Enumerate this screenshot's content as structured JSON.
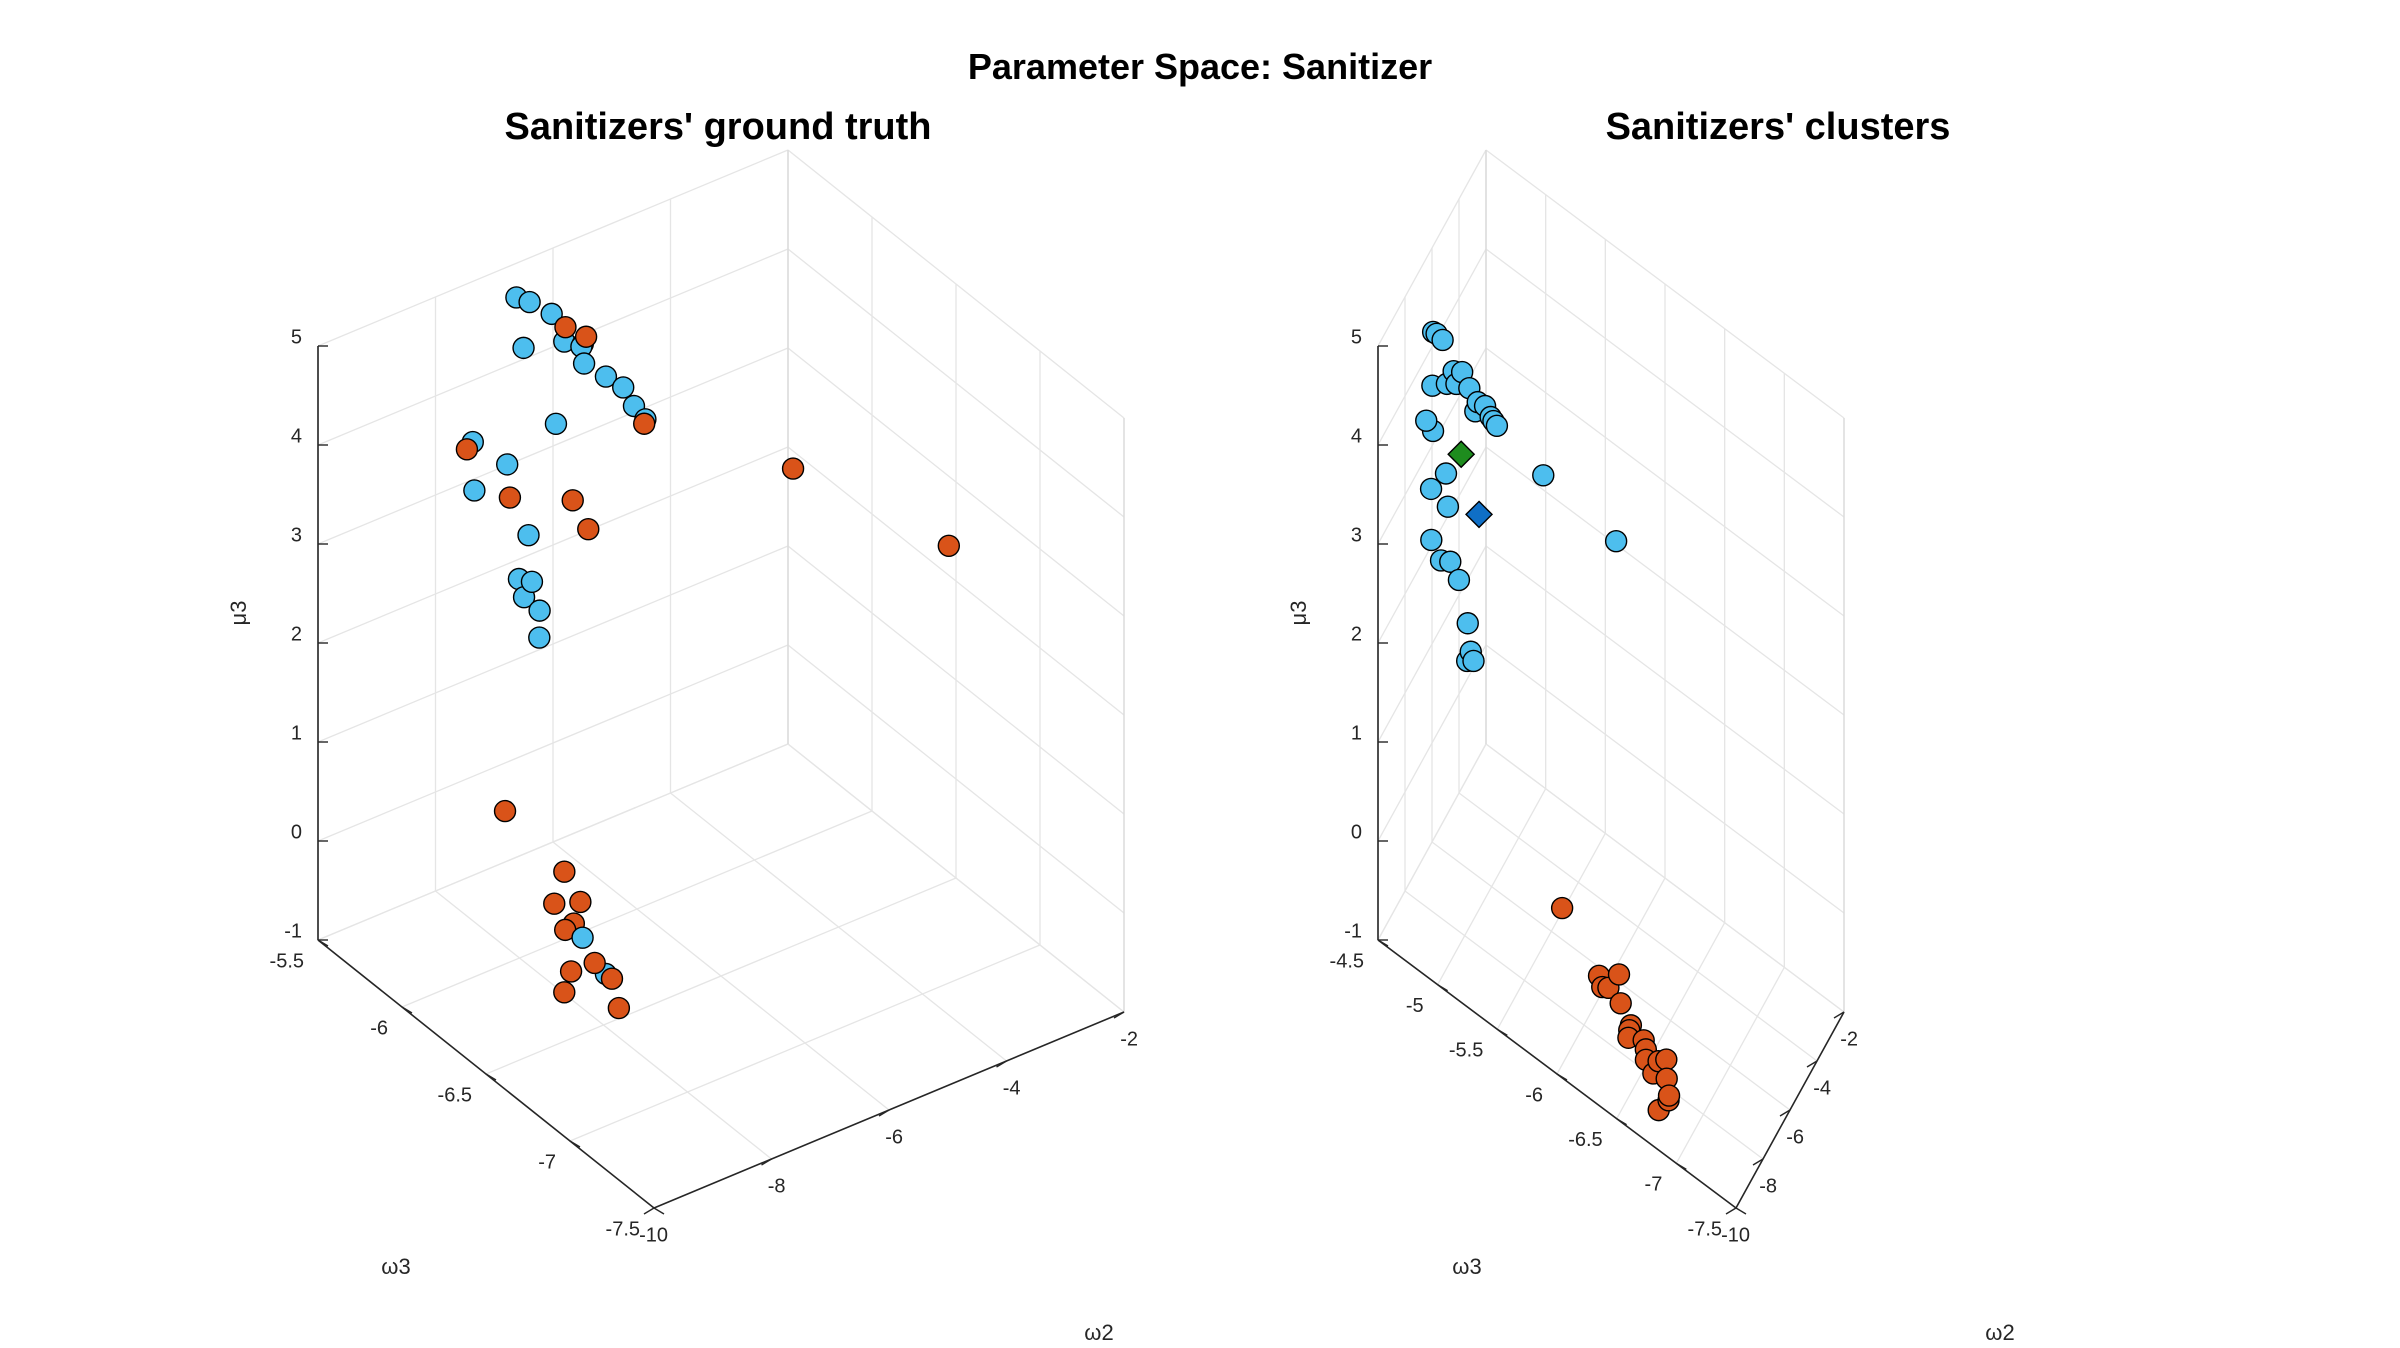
{
  "figure_title": "Parameter Space: Sanitizer",
  "colors": {
    "blue": "#4DBEEE",
    "orange": "#D95319",
    "green": "#1E8C1E",
    "darkblue": "#0F6FC6"
  },
  "chart_data": [
    {
      "type": "scatter",
      "title": "Sanitizers' ground truth",
      "xlabel": "ω2",
      "ylabel": "ω3",
      "zlabel": "μ3",
      "xlim": [
        -10,
        -2
      ],
      "ylim": [
        -7.5,
        -5.5
      ],
      "zlim": [
        -1,
        5
      ],
      "xticks": [
        "-10",
        "-8",
        "-6",
        "-4",
        "-2"
      ],
      "yticks": [
        "-7.5",
        "-7",
        "-6.5",
        "-6",
        "-5.5"
      ],
      "zticks": [
        "-1",
        "0",
        "1",
        "2",
        "3",
        "4",
        "5"
      ],
      "grid": true,
      "series": [
        {
          "color": "blue",
          "points": [
            [
              -6.88,
              -5.59,
              4.84
            ],
            [
              -6.77,
              -5.63,
              4.82
            ],
            [
              -6.48,
              -5.66,
              4.67
            ],
            [
              -6.38,
              -5.7,
              4.42
            ],
            [
              -6.26,
              -5.76,
              4.42
            ],
            [
              -6.3,
              -5.79,
              4.3
            ],
            [
              -6.1,
              -5.85,
              4.2
            ],
            [
              -5.92,
              -5.89,
              4.1
            ],
            [
              -5.88,
              -5.94,
              3.97
            ],
            [
              -5.8,
              -5.98,
              3.87
            ],
            [
              -6.73,
              -5.58,
              4.28
            ],
            [
              -7.38,
              -5.71,
              3.44
            ],
            [
              -7.71,
              -5.63,
              3.15
            ],
            [
              -6.76,
              -5.62,
              2.45
            ],
            [
              -6.35,
              -5.64,
              3.5
            ],
            [
              -7.52,
              -5.95,
              2.05
            ],
            [
              -7.0,
              -5.77,
              1.95
            ],
            [
              -6.58,
              -5.5,
              1.8
            ],
            [
              -6.75,
              -5.59,
              1.78
            ],
            [
              -7.87,
              -6.33,
              -0.38
            ],
            [
              -7.73,
              -6.42,
              -0.66
            ],
            [
              -8.36,
              -6.2,
              3.16
            ],
            [
              -7.48,
              -5.54,
              3.46
            ]
          ]
        },
        {
          "color": "orange",
          "points": [
            [
              -6.36,
              -5.7,
              4.56
            ],
            [
              -6.18,
              -5.76,
              4.5
            ],
            [
              -5.82,
              -5.98,
              3.83
            ],
            [
              -6.15,
              -5.73,
              4.38
            ],
            [
              -7.98,
              -5.68,
              3.7
            ],
            [
              -7.62,
              -5.81,
              3.3
            ],
            [
              -5.8,
              -5.64,
              2.3
            ],
            [
              -5.75,
              -5.53,
              2.43
            ],
            [
              -4.23,
              -6.31,
              3.43
            ],
            [
              -2.78,
              -6.73,
              2.86
            ],
            [
              -7.56,
              -5.76,
              0.05
            ],
            [
              -7.58,
              -6.12,
              -0.07
            ],
            [
              -7.45,
              -6.17,
              -0.34
            ],
            [
              -7.78,
              -6.13,
              -0.33
            ],
            [
              -7.95,
              -6.43,
              -0.48
            ],
            [
              -8.08,
              -6.3,
              -0.29
            ],
            [
              -7.77,
              -6.47,
              -0.63
            ],
            [
              -8.18,
              -6.37,
              -0.59
            ],
            [
              -8.41,
              -6.41,
              -0.69
            ],
            [
              -7.91,
              -6.56,
              -0.77
            ],
            [
              -7.59,
              -6.18,
              -0.51
            ]
          ]
        }
      ]
    },
    {
      "type": "scatter",
      "title": "Sanitizers' clusters",
      "xlabel": "ω2",
      "ylabel": "ω3",
      "zlabel": "μ3",
      "xlim": [
        -10,
        -2
      ],
      "ylim": [
        -7.5,
        -4.5
      ],
      "zlim": [
        -1,
        5
      ],
      "xticks": [
        "-10",
        "-8",
        "-6",
        "-4",
        "-2"
      ],
      "yticks": [
        "-7.5",
        "-7",
        "-6.5",
        "-6",
        "-5.5",
        "-5",
        "-4.5"
      ],
      "zticks": [
        "-1",
        "0",
        "1",
        "2",
        "3",
        "4",
        "5"
      ],
      "grid": true,
      "series": [
        {
          "color": "blue",
          "points": [
            [
              -6.8,
              -4.6,
              4.44
            ],
            [
              -6.72,
              -4.62,
              4.42
            ],
            [
              -6.54,
              -4.65,
              4.34
            ],
            [
              -6.43,
              -4.73,
              4.07
            ],
            [
              -6.33,
              -4.79,
              4.09
            ],
            [
              -6.24,
              -4.84,
              3.95
            ],
            [
              -6.06,
              -4.89,
              3.81
            ],
            [
              -5.87,
              -4.93,
              3.76
            ],
            [
              -5.81,
              -4.97,
              3.67
            ],
            [
              -5.7,
              -5.01,
              3.59
            ],
            [
              -6.68,
              -4.58,
              3.85
            ],
            [
              -6.4,
              -4.67,
              3.88
            ],
            [
              -7.35,
              -4.77,
              3.3
            ],
            [
              -7.66,
              -4.68,
              3.14
            ],
            [
              -7.21,
              -4.77,
              2.93
            ],
            [
              -7.86,
              -5.01,
              2.13
            ],
            [
              -7.63,
              -4.91,
              2.42
            ],
            [
              -6.67,
              -4.57,
              2.28
            ],
            [
              -6.06,
              -4.66,
              1.99
            ],
            [
              -6.48,
              -4.63,
              2.08
            ],
            [
              -7.08,
              -4.97,
              1.52
            ],
            [
              -6.93,
              -4.93,
              1.54
            ],
            [
              -6.93,
              -4.9,
              1.42
            ],
            [
              -4.21,
              -5.23,
              2.92
            ],
            [
              -2.88,
              -5.69,
              2.34
            ],
            [
              -6.63,
              -4.58,
              3.38
            ],
            [
              -6.31,
              -4.74,
              3.92
            ],
            [
              -5.78,
              -4.99,
              3.64
            ],
            [
              -6.15,
              -4.88,
              3.73
            ],
            [
              -7.31,
              -4.6,
              3.67
            ]
          ]
        },
        {
          "color": "orange",
          "points": [
            [
              -7.41,
              -5.75,
              -0.19
            ],
            [
              -7.77,
              -6.1,
              -0.47
            ],
            [
              -7.44,
              -6.23,
              -0.42
            ],
            [
              -7.51,
              -6.09,
              -0.57
            ],
            [
              -7.58,
              -6.26,
              -0.65
            ],
            [
              -7.34,
              -6.13,
              -0.67
            ],
            [
              -7.71,
              -6.12,
              -0.58
            ],
            [
              -7.71,
              -6.36,
              -0.75
            ],
            [
              -7.83,
              -6.36,
              -0.77
            ],
            [
              -7.69,
              -6.59,
              -0.91
            ],
            [
              -7.98,
              -6.37,
              -0.8
            ],
            [
              -8.01,
              -6.52,
              -0.88
            ],
            [
              -7.56,
              -6.64,
              -0.88
            ],
            [
              -7.38,
              -6.43,
              -0.92
            ],
            [
              -7.31,
              -6.44,
              -1.02
            ],
            [
              -8.3,
              -6.66,
              -1.19
            ],
            [
              -7.62,
              -6.65,
              -1.05
            ],
            [
              -7.9,
              -6.57,
              -1.0
            ],
            [
              -7.8,
              -6.69,
              -1.14
            ],
            [
              -7.66,
              -6.67,
              -1.24
            ]
          ]
        },
        {
          "color": "green",
          "marker": "diamond",
          "points": [
            [
              -6.58,
              -4.81,
              3.34
            ]
          ]
        },
        {
          "color": "darkblue",
          "marker": "diamond",
          "points": [
            [
              -6.76,
              -4.98,
              2.93
            ]
          ]
        }
      ]
    }
  ]
}
